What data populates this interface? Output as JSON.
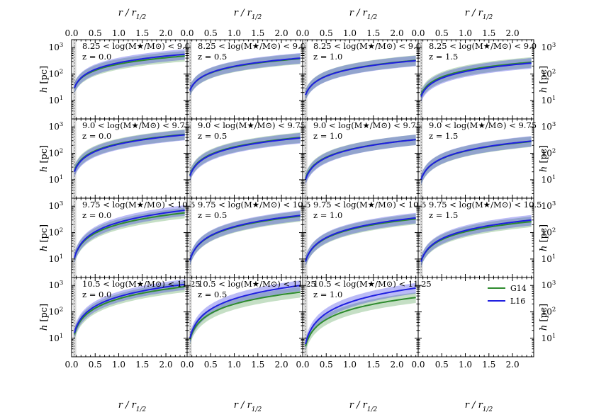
{
  "chart_data": {
    "type": "line",
    "grid": {
      "rows": 4,
      "cols": 4
    },
    "xlabel_top": "r / r1/2",
    "xlabel_bottom": "r / r1/2",
    "ylabel_left": "h [pc]",
    "ylabel_right": "h [pc]",
    "xlim": [
      0.0,
      2.45
    ],
    "ylim": [
      2,
      2000
    ],
    "yscale": "log",
    "xticks": [
      "0.0",
      "0.5",
      "1.0",
      "1.5",
      "2.0"
    ],
    "yticks": [
      "10^1",
      "10^2",
      "10^3"
    ],
    "legend": {
      "placement": "top-right of bottom-right panel",
      "entries": [
        {
          "name": "G14",
          "color": "#2e8b2e"
        },
        {
          "name": "L16",
          "color": "#1f1fe0"
        }
      ]
    },
    "panels": [
      {
        "row": 0,
        "col": 0,
        "mass_label": "8.25 < log(M★/M⊙) < 9.0",
        "z_label": "z = 0.0",
        "series": [
          {
            "name": "G14",
            "y0": 30,
            "y2": 480
          },
          {
            "name": "L16",
            "y0": 30,
            "y2": 560
          }
        ]
      },
      {
        "row": 0,
        "col": 1,
        "mass_label": "8.25 < log(M★/M⊙) < 9.0",
        "z_label": "z = 0.5",
        "series": [
          {
            "name": "G14",
            "y0": 24,
            "y2": 380
          },
          {
            "name": "L16",
            "y0": 24,
            "y2": 400
          }
        ]
      },
      {
        "row": 0,
        "col": 2,
        "mass_label": "8.25 < log(M★/M⊙) < 9.0",
        "z_label": "z = 1.0",
        "series": [
          {
            "name": "G14",
            "y0": 16,
            "y2": 330
          },
          {
            "name": "L16",
            "y0": 16,
            "y2": 320
          }
        ]
      },
      {
        "row": 0,
        "col": 3,
        "mass_label": "8.25 < log(M★/M⊙) < 9.0",
        "z_label": "z = 1.5",
        "series": [
          {
            "name": "G14",
            "y0": 16,
            "y2": 280
          },
          {
            "name": "L16",
            "y0": 14,
            "y2": 260
          }
        ]
      },
      {
        "row": 1,
        "col": 0,
        "mass_label": "9.0 < log(M★/M⊙) < 9.75",
        "z_label": "z = 0.0",
        "series": [
          {
            "name": "G14",
            "y0": 22,
            "y2": 520
          },
          {
            "name": "L16",
            "y0": 20,
            "y2": 500
          }
        ]
      },
      {
        "row": 1,
        "col": 1,
        "mass_label": "9.0 < log(M★/M⊙) < 9.75",
        "z_label": "z = 0.5",
        "series": [
          {
            "name": "G14",
            "y0": 15,
            "y2": 400
          },
          {
            "name": "L16",
            "y0": 14,
            "y2": 380
          }
        ]
      },
      {
        "row": 1,
        "col": 2,
        "mass_label": "9.0 < log(M★/M⊙) < 9.75",
        "z_label": "z = 1.0",
        "series": [
          {
            "name": "G14",
            "y0": 11,
            "y2": 330
          },
          {
            "name": "L16",
            "y0": 10,
            "y2": 330
          }
        ]
      },
      {
        "row": 1,
        "col": 3,
        "mass_label": "9.0 < log(M★/M⊙) < 9.75",
        "z_label": "z = 1.5",
        "series": [
          {
            "name": "G14",
            "y0": 10,
            "y2": 280
          },
          {
            "name": "L16",
            "y0": 10,
            "y2": 290
          }
        ]
      },
      {
        "row": 2,
        "col": 0,
        "mass_label": "9.75 < log(M★/M⊙) < 10.5",
        "z_label": "z = 0.0",
        "series": [
          {
            "name": "G14",
            "y0": 11,
            "y2": 560
          },
          {
            "name": "L16",
            "y0": 11,
            "y2": 700
          }
        ]
      },
      {
        "row": 2,
        "col": 1,
        "mass_label": "9.75 < log(M★/M⊙) < 10.5",
        "z_label": "z = 0.5",
        "series": [
          {
            "name": "G14",
            "y0": 9,
            "y2": 420
          },
          {
            "name": "L16",
            "y0": 9,
            "y2": 450
          }
        ]
      },
      {
        "row": 2,
        "col": 2,
        "mass_label": "9.75 < log(M★/M⊙) < 10.5",
        "z_label": "z = 1.0",
        "series": [
          {
            "name": "G14",
            "y0": 8,
            "y2": 330
          },
          {
            "name": "L16",
            "y0": 8,
            "y2": 360
          }
        ]
      },
      {
        "row": 2,
        "col": 3,
        "mass_label": "9.75 < log(M★/M⊙) < 10.5",
        "z_label": "z = 1.5",
        "series": [
          {
            "name": "G14",
            "y0": 8,
            "y2": 260
          },
          {
            "name": "L16",
            "y0": 8,
            "y2": 300
          }
        ]
      },
      {
        "row": 3,
        "col": 0,
        "mass_label": "10.5 < log(M★/M⊙) < 11.25",
        "z_label": "z = 0.0",
        "series": [
          {
            "name": "G14",
            "y0": 14,
            "y2": 900
          },
          {
            "name": "L16",
            "y0": 16,
            "y2": 1100
          }
        ]
      },
      {
        "row": 3,
        "col": 1,
        "mass_label": "10.5 < log(M★/M⊙) < 11.25",
        "z_label": "z = 0.5",
        "series": [
          {
            "name": "G14",
            "y0": 9,
            "y2": 560
          },
          {
            "name": "L16",
            "y0": 10,
            "y2": 1000
          }
        ]
      },
      {
        "row": 3,
        "col": 2,
        "mass_label": "10.5 < log(M★/M⊙) < 11.25",
        "z_label": "z = 1.0",
        "series": [
          {
            "name": "G14",
            "y0": 5,
            "y2": 350
          },
          {
            "name": "L16",
            "y0": 6,
            "y2": 800
          }
        ]
      }
    ]
  }
}
